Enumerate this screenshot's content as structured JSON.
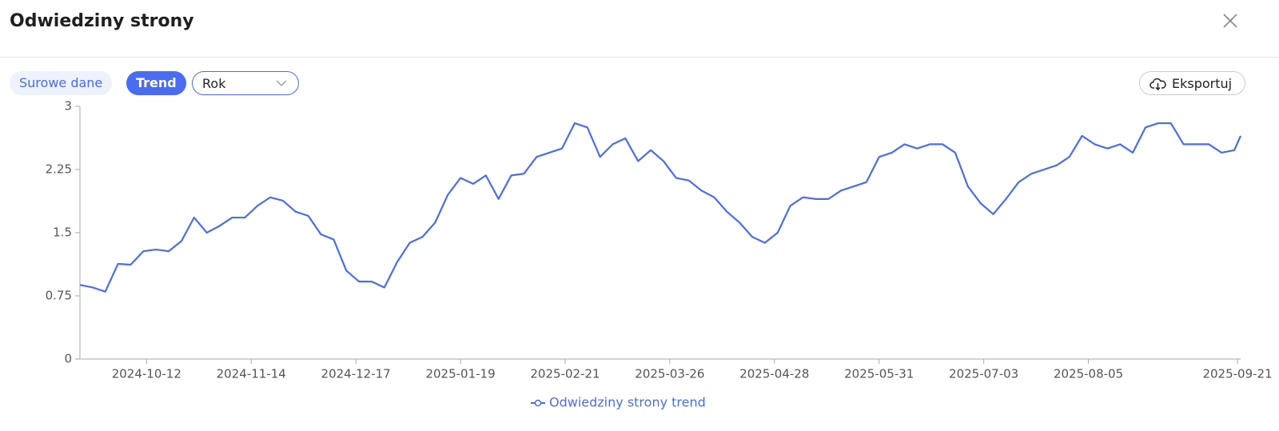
{
  "header": {
    "title": "Odwiedziny strony"
  },
  "toolbar": {
    "tabs": [
      "Surowe dane",
      "Trend"
    ],
    "period": "Rok",
    "export": "Eksportuj"
  },
  "chart_data": {
    "type": "line",
    "x": [
      "2024-09-21",
      "2024-09-25",
      "2024-09-29",
      "2024-10-03",
      "2024-10-07",
      "2024-10-11",
      "2024-10-15",
      "2024-10-19",
      "2024-10-23",
      "2024-10-27",
      "2024-10-31",
      "2024-11-04",
      "2024-11-08",
      "2024-11-12",
      "2024-11-16",
      "2024-11-20",
      "2024-11-24",
      "2024-11-28",
      "2024-12-02",
      "2024-12-06",
      "2024-12-10",
      "2024-12-14",
      "2024-12-18",
      "2024-12-22",
      "2024-12-26",
      "2024-12-30",
      "2025-01-03",
      "2025-01-07",
      "2025-01-11",
      "2025-01-15",
      "2025-01-19",
      "2025-01-23",
      "2025-01-27",
      "2025-01-31",
      "2025-02-04",
      "2025-02-08",
      "2025-02-12",
      "2025-02-16",
      "2025-02-20",
      "2025-02-24",
      "2025-02-28",
      "2025-03-04",
      "2025-03-08",
      "2025-03-12",
      "2025-03-16",
      "2025-03-20",
      "2025-03-24",
      "2025-03-28",
      "2025-04-01",
      "2025-04-05",
      "2025-04-09",
      "2025-04-13",
      "2025-04-17",
      "2025-04-21",
      "2025-04-25",
      "2025-04-29",
      "2025-05-03",
      "2025-05-07",
      "2025-05-11",
      "2025-05-15",
      "2025-05-19",
      "2025-05-23",
      "2025-05-27",
      "2025-05-31",
      "2025-06-04",
      "2025-06-08",
      "2025-06-12",
      "2025-06-16",
      "2025-06-20",
      "2025-06-24",
      "2025-06-28",
      "2025-07-02",
      "2025-07-06",
      "2025-07-10",
      "2025-07-14",
      "2025-07-18",
      "2025-07-22",
      "2025-07-26",
      "2025-07-30",
      "2025-08-03",
      "2025-08-07",
      "2025-08-11",
      "2025-08-15",
      "2025-08-19",
      "2025-08-23",
      "2025-08-27",
      "2025-08-31",
      "2025-09-04",
      "2025-09-08",
      "2025-09-12",
      "2025-09-16",
      "2025-09-20",
      "2025-09-22"
    ],
    "series": [
      {
        "name": "Odwiedziny strony trend",
        "color": "#4a6cf0",
        "values": [
          0.88,
          0.85,
          0.8,
          1.13,
          1.12,
          1.28,
          1.3,
          1.28,
          1.4,
          1.68,
          1.5,
          1.58,
          1.68,
          1.68,
          1.82,
          1.92,
          1.88,
          1.75,
          1.7,
          1.48,
          1.42,
          1.05,
          0.92,
          0.92,
          0.85,
          1.15,
          1.38,
          1.45,
          1.62,
          1.95,
          2.15,
          2.08,
          2.18,
          1.9,
          2.18,
          2.2,
          2.4,
          2.45,
          2.5,
          2.8,
          2.75,
          2.4,
          2.55,
          2.62,
          2.35,
          2.48,
          2.35,
          2.15,
          2.12,
          2.0,
          1.92,
          1.75,
          1.62,
          1.45,
          1.38,
          1.5,
          1.82,
          1.92,
          1.9,
          1.9,
          2.0,
          2.05,
          2.1,
          2.4,
          2.45,
          2.55,
          2.5,
          2.55,
          2.55,
          2.45,
          2.05,
          1.85,
          1.72,
          1.9,
          2.1,
          2.2,
          2.25,
          2.3,
          2.4,
          2.65,
          2.55,
          2.5,
          2.55,
          2.45,
          2.75,
          2.8,
          2.8,
          2.55,
          2.55,
          2.55,
          2.45,
          2.48,
          2.65
        ]
      }
    ],
    "xlim": [
      "2024-09-21",
      "2025-09-22"
    ],
    "xticks": [
      "2024-10-12",
      "2024-11-14",
      "2024-12-17",
      "2025-01-19",
      "2025-02-21",
      "2025-03-26",
      "2025-04-28",
      "2025-05-31",
      "2025-07-03",
      "2025-08-05",
      "2025-09-21"
    ],
    "ylim": [
      0,
      3
    ],
    "yticks": [
      0,
      0.75,
      1.5,
      2.25,
      3
    ]
  }
}
